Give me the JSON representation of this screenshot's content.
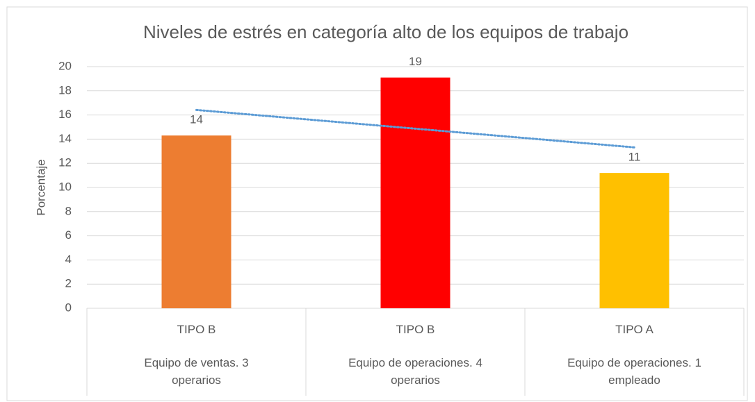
{
  "chart_data": {
    "type": "bar",
    "title": "Niveles de estrés en categoría  alto de los equipos de trabajo",
    "ylabel": "Porcentaje",
    "categories": [
      "TIPO B",
      "TIPO B",
      "TIPO A"
    ],
    "subcategories": [
      "Equipo de ventas. 3 operarios",
      "Equipo de operaciones. 4 operarios",
      "Equipo de operaciones. 1 empleado"
    ],
    "values": [
      14.3,
      19.1,
      11.2
    ],
    "value_labels": [
      "14",
      "19",
      "11"
    ],
    "colors": [
      "#ED7D31",
      "#FF0000",
      "#FFC000"
    ],
    "ylim": [
      0,
      20
    ],
    "yticks": [
      0,
      2,
      4,
      6,
      8,
      10,
      12,
      14,
      16,
      18,
      20
    ],
    "grid": true,
    "trendline": "linear",
    "trendline_color": "#5B9BD5"
  }
}
